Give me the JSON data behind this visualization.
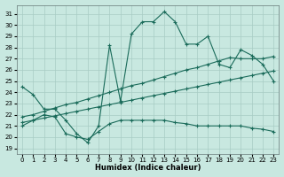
{
  "xlabel": "Humidex (Indice chaleur)",
  "background_color": "#c8e8e0",
  "grid_color": "#a8ccc4",
  "line_color": "#1a6b5a",
  "xlim": [
    -0.5,
    23.5
  ],
  "ylim": [
    18.5,
    31.8
  ],
  "yticks": [
    19,
    20,
    21,
    22,
    23,
    24,
    25,
    26,
    27,
    28,
    29,
    30,
    31
  ],
  "xticks": [
    0,
    1,
    2,
    3,
    4,
    5,
    6,
    7,
    8,
    9,
    10,
    11,
    12,
    13,
    14,
    15,
    16,
    17,
    18,
    19,
    20,
    21,
    22,
    23
  ],
  "series": [
    {
      "x": [
        0,
        1,
        2,
        3,
        4,
        5,
        6,
        7,
        8,
        9,
        10,
        11,
        12,
        13,
        14,
        15,
        16,
        17,
        18,
        19,
        20,
        21,
        22,
        23
      ],
      "y": [
        24.5,
        23.8,
        22.5,
        22.5,
        21.5,
        20.3,
        19.5,
        21.0,
        28.2,
        23.2,
        29.2,
        30.3,
        30.3,
        31.2,
        30.3,
        28.3,
        28.3,
        29.0,
        26.5,
        26.2,
        27.8,
        27.3,
        26.5,
        25.0
      ]
    },
    {
      "x": [
        0,
        1,
        2,
        3,
        4,
        5,
        6,
        7,
        8,
        9,
        10,
        11,
        12,
        13,
        14,
        15,
        16,
        17,
        18,
        19,
        20,
        21,
        22,
        23
      ],
      "y": [
        21.8,
        22.0,
        22.3,
        22.6,
        22.9,
        23.1,
        23.4,
        23.7,
        24.0,
        24.3,
        24.6,
        24.8,
        25.1,
        25.4,
        25.7,
        26.0,
        26.2,
        26.5,
        26.8,
        27.1,
        27.0,
        27.0,
        27.0,
        27.2
      ]
    },
    {
      "x": [
        0,
        1,
        2,
        3,
        4,
        5,
        6,
        7,
        8,
        9,
        10,
        11,
        12,
        13,
        14,
        15,
        16,
        17,
        18,
        19,
        20,
        21,
        22,
        23
      ],
      "y": [
        21.3,
        21.5,
        21.7,
        21.9,
        22.1,
        22.3,
        22.5,
        22.7,
        22.9,
        23.1,
        23.3,
        23.5,
        23.7,
        23.9,
        24.1,
        24.3,
        24.5,
        24.7,
        24.9,
        25.1,
        25.3,
        25.5,
        25.7,
        25.9
      ]
    },
    {
      "x": [
        0,
        1,
        2,
        3,
        4,
        5,
        6,
        7,
        8,
        9,
        10,
        11,
        12,
        13,
        14,
        15,
        16,
        17,
        18,
        19,
        20,
        21,
        22,
        23
      ],
      "y": [
        21.0,
        21.5,
        22.0,
        21.8,
        20.3,
        20.0,
        19.8,
        20.5,
        21.2,
        21.5,
        21.5,
        21.5,
        21.5,
        21.5,
        21.3,
        21.2,
        21.0,
        21.0,
        21.0,
        21.0,
        21.0,
        20.8,
        20.7,
        20.5
      ]
    }
  ]
}
